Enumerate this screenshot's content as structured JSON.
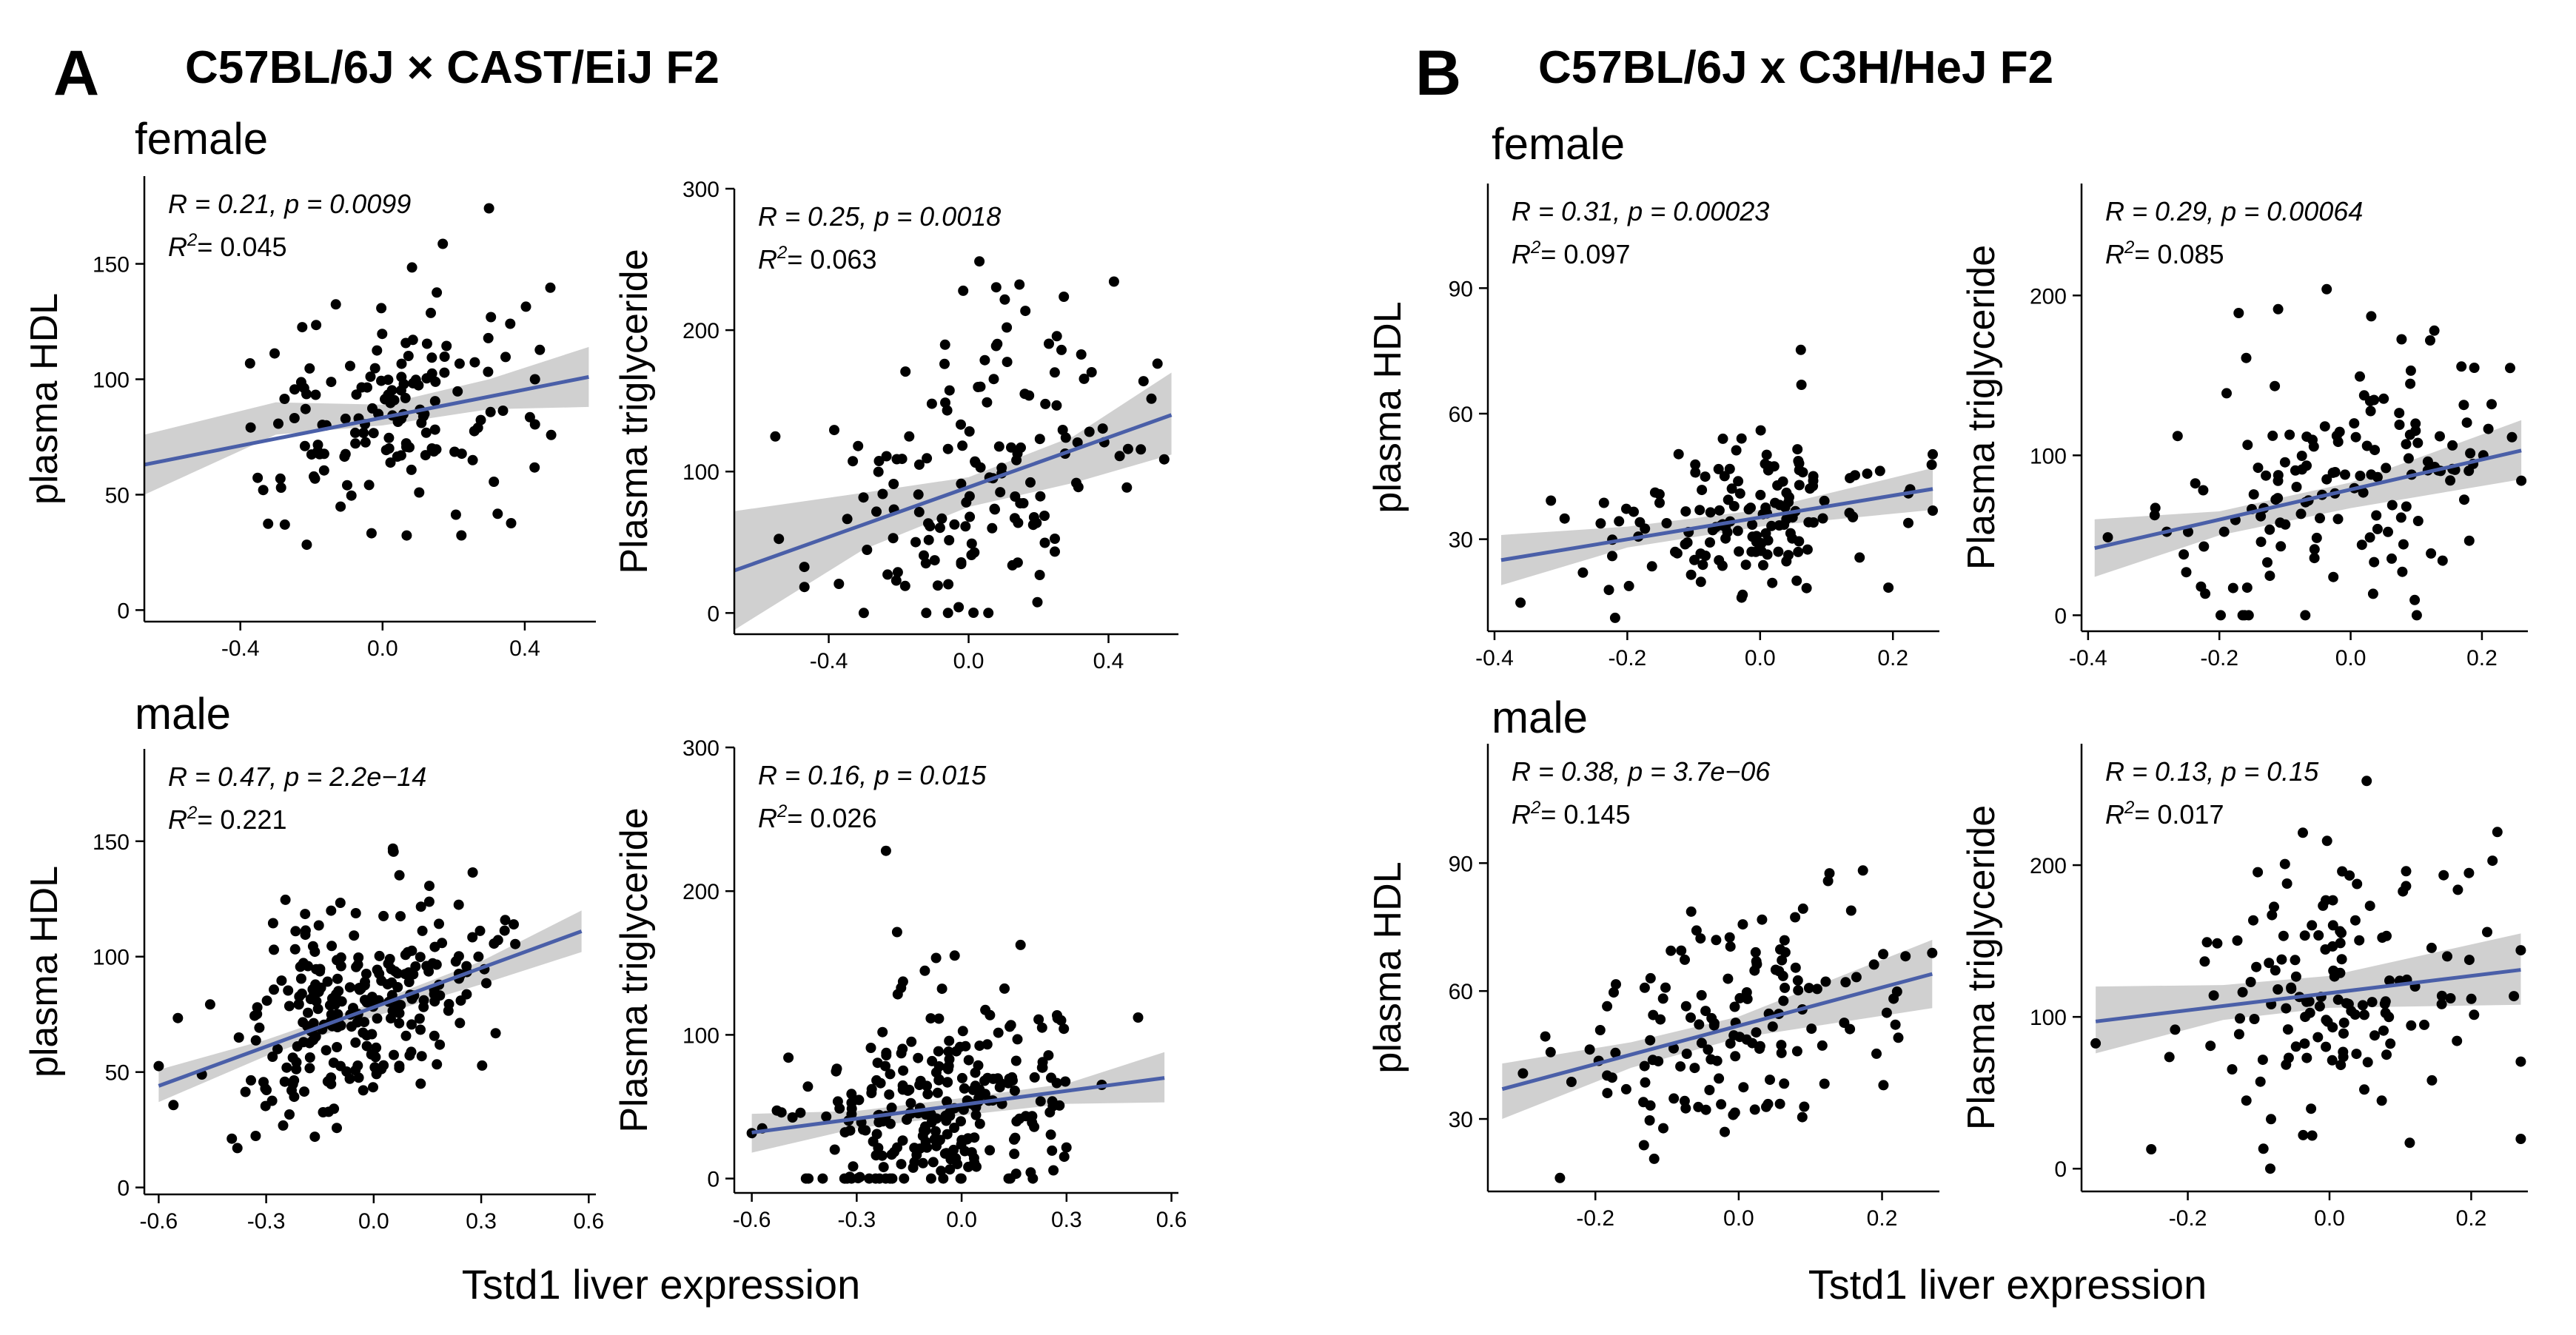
{
  "figure": {
    "panels": [
      {
        "letter": "A",
        "title": "C57BL/6J × CAST/EiJ F2",
        "x_axis_label": "Tstd1 liver expression"
      },
      {
        "letter": "B",
        "title": "C57BL/6J x C3H/HeJ F2",
        "x_axis_label": "Tstd1 liver expression"
      }
    ],
    "sex_labels": [
      "female",
      "male",
      "female",
      "male"
    ]
  },
  "colors": {
    "fit_line": "#4a5fa8",
    "confidence_band": "#c8c8c8",
    "points": "#000000"
  },
  "chart_data": [
    {
      "id": "A_female_HDL",
      "type": "scatter",
      "xlabel": "",
      "ylabel": "plasma HDL",
      "xlim": [
        -0.67,
        0.6
      ],
      "ylim": [
        -5,
        188
      ],
      "xticks": [
        -0.4,
        0.0,
        0.4
      ],
      "xtick_labels": [
        "-0.4",
        "0.0",
        "0.4"
      ],
      "yticks": [
        0,
        50,
        100,
        150
      ],
      "ytick_labels": [
        "0",
        "50",
        "100",
        "150"
      ],
      "stat_r": "R = 0.21, p = 0.0099",
      "stat_r2": "= 0.045",
      "fit": {
        "x": [
          -0.67,
          0.58
        ],
        "y": [
          63,
          101
        ]
      },
      "band": {
        "x": [
          -0.67,
          -0.3,
          0.0,
          0.3,
          0.58
        ],
        "upper": [
          76,
          90,
          89,
          100,
          114
        ],
        "lower": [
          50,
          76,
          80,
          87,
          88
        ]
      },
      "n": 150,
      "seed": 11,
      "mean_x": 0.04,
      "sd_x": 0.2,
      "mean_y": 85,
      "sd_y": 27
    },
    {
      "id": "A_female_TG",
      "type": "scatter",
      "xlabel": "",
      "ylabel": "Plasma triglyceride",
      "xlim": [
        -0.67,
        0.6
      ],
      "ylim": [
        -15,
        300
      ],
      "xticks": [
        -0.4,
        0.0,
        0.4
      ],
      "xtick_labels": [
        "-0.4",
        "0.0",
        "0.4"
      ],
      "yticks": [
        0,
        100,
        200,
        300
      ],
      "ytick_labels": [
        "0",
        "100",
        "200",
        "300"
      ],
      "stat_r": "R = 0.25, p = 0.0018",
      "stat_r2": "= 0.063",
      "fit": {
        "x": [
          -0.67,
          0.58
        ],
        "y": [
          30,
          140
        ]
      },
      "band": {
        "x": [
          -0.67,
          -0.3,
          0.0,
          0.3,
          0.58
        ],
        "upper": [
          72,
          85,
          96,
          125,
          170
        ],
        "lower": [
          -12,
          45,
          75,
          92,
          112
        ]
      },
      "n": 150,
      "seed": 23,
      "mean_x": 0.04,
      "sd_x": 0.2,
      "mean_y": 95,
      "sd_y": 60
    },
    {
      "id": "A_male_HDL",
      "type": "scatter",
      "xlabel": "",
      "ylabel": "plasma HDL",
      "xlim": [
        -0.64,
        0.62
      ],
      "ylim": [
        -3,
        190
      ],
      "xticks": [
        -0.6,
        -0.3,
        0.0,
        0.3,
        0.6
      ],
      "xtick_labels": [
        "-0.6",
        "-0.3",
        "0.0",
        "0.3",
        "0.6"
      ],
      "yticks": [
        0,
        50,
        100,
        150
      ],
      "ytick_labels": [
        "0",
        "50",
        "100",
        "150"
      ],
      "stat_r": "R = 0.47, p = 2.2e−14",
      "stat_r2": "= 0.221",
      "fit": {
        "x": [
          -0.6,
          0.58
        ],
        "y": [
          44,
          111
        ]
      },
      "band": {
        "x": [
          -0.6,
          -0.3,
          0.0,
          0.3,
          0.58
        ],
        "upper": [
          51,
          64,
          80,
          98,
          120
        ],
        "lower": [
          37,
          57,
          74,
          88,
          102
        ]
      },
      "n": 260,
      "seed": 37,
      "mean_x": -0.06,
      "sd_x": 0.2,
      "mean_y": 72,
      "sd_y": 25
    },
    {
      "id": "A_male_TG",
      "type": "scatter",
      "xlabel": "",
      "ylabel": "Plasma triglyceride",
      "xlim": [
        -0.65,
        0.62
      ],
      "ylim": [
        -10,
        300
      ],
      "xticks": [
        -0.6,
        -0.3,
        0.0,
        0.3,
        0.6
      ],
      "xtick_labels": [
        "-0.6",
        "-0.3",
        "0.0",
        "0.3",
        "0.6"
      ],
      "yticks": [
        0,
        100,
        200,
        300
      ],
      "ytick_labels": [
        "0",
        "100",
        "200",
        "300"
      ],
      "stat_r": "R = 0.16, p = 0.015",
      "stat_r2": "= 0.026",
      "fit": {
        "x": [
          -0.6,
          0.58
        ],
        "y": [
          32,
          70
        ]
      },
      "band": {
        "x": [
          -0.6,
          -0.3,
          0.0,
          0.3,
          0.58
        ],
        "upper": [
          45,
          47,
          56,
          66,
          88
        ],
        "lower": [
          18,
          35,
          44,
          52,
          53
        ]
      },
      "n": 260,
      "seed": 41,
      "mean_x": -0.06,
      "sd_x": 0.2,
      "mean_y": 50,
      "sd_y": 40
    },
    {
      "id": "B_female_HDL",
      "type": "scatter",
      "xlabel": "",
      "ylabel": "plasma HDL",
      "xlim": [
        -0.41,
        0.27
      ],
      "ylim": [
        8,
        115
      ],
      "xticks": [
        -0.4,
        -0.2,
        0.0,
        0.2
      ],
      "xtick_labels": [
        "-0.4",
        "-0.2",
        "0.0",
        "0.2"
      ],
      "yticks": [
        30,
        60,
        90
      ],
      "ytick_labels": [
        "30",
        "60",
        "90"
      ],
      "stat_r": "R = 0.31, p = 0.00023",
      "stat_r2": "= 0.097",
      "fit": {
        "x": [
          -0.39,
          0.26
        ],
        "y": [
          25,
          42
        ]
      },
      "band": {
        "x": [
          -0.39,
          -0.2,
          0.0,
          0.26
        ],
        "upper": [
          31,
          33,
          37,
          47
        ],
        "lower": [
          19,
          28,
          33,
          37
        ]
      },
      "n": 150,
      "seed": 53,
      "mean_x": -0.02,
      "sd_x": 0.12,
      "mean_y": 34,
      "sd_y": 11
    },
    {
      "id": "B_female_TG",
      "type": "scatter",
      "xlabel": "",
      "ylabel": "Plasma triglyceride",
      "xlim": [
        -0.41,
        0.27
      ],
      "ylim": [
        -10,
        270
      ],
      "xticks": [
        -0.4,
        -0.2,
        0.0,
        0.2
      ],
      "xtick_labels": [
        "-0.4",
        "-0.2",
        "0.0",
        "0.2"
      ],
      "yticks": [
        0,
        100,
        200
      ],
      "ytick_labels": [
        "0",
        "100",
        "200"
      ],
      "stat_r": "R = 0.29, p = 0.00064",
      "stat_r2": "= 0.085",
      "fit": {
        "x": [
          -0.39,
          0.26
        ],
        "y": [
          42,
          103
        ]
      },
      "band": {
        "x": [
          -0.39,
          -0.2,
          0.0,
          0.26
        ],
        "upper": [
          60,
          65,
          83,
          122
        ],
        "lower": [
          24,
          50,
          67,
          85
        ]
      },
      "n": 150,
      "seed": 67,
      "mean_x": -0.02,
      "sd_x": 0.12,
      "mean_y": 75,
      "sd_y": 45
    },
    {
      "id": "B_male_HDL",
      "type": "scatter",
      "xlabel": "",
      "ylabel": "plasma HDL",
      "xlim": [
        -0.35,
        0.28
      ],
      "ylim": [
        13,
        118
      ],
      "xticks": [
        -0.2,
        0.0,
        0.2
      ],
      "xtick_labels": [
        "-0.2",
        "0.0",
        "0.2"
      ],
      "yticks": [
        30,
        60,
        90
      ],
      "ytick_labels": [
        "30",
        "60",
        "90"
      ],
      "stat_r": "R = 0.38, p = 3.7e−06",
      "stat_r2": "= 0.145",
      "fit": {
        "x": [
          -0.33,
          0.27
        ],
        "y": [
          37,
          64
        ]
      },
      "band": {
        "x": [
          -0.33,
          -0.15,
          0.0,
          0.27
        ],
        "upper": [
          43,
          48,
          54,
          72
        ],
        "lower": [
          30,
          42,
          49,
          56
        ]
      },
      "n": 145,
      "seed": 79,
      "mean_x": -0.01,
      "sd_x": 0.12,
      "mean_y": 50,
      "sd_y": 15
    },
    {
      "id": "B_male_TG",
      "type": "scatter",
      "xlabel": "",
      "ylabel": "Plasma triglyceride",
      "xlim": [
        -0.35,
        0.28
      ],
      "ylim": [
        -15,
        280
      ],
      "xticks": [
        -0.2,
        0.0,
        0.2
      ],
      "xtick_labels": [
        "-0.2",
        "0.0",
        "0.2"
      ],
      "yticks": [
        0,
        100,
        200
      ],
      "ytick_labels": [
        "0",
        "100",
        "200"
      ],
      "stat_r": "R = 0.13, p = 0.15",
      "stat_r2": "= 0.017",
      "fit": {
        "x": [
          -0.33,
          0.27
        ],
        "y": [
          97,
          131
        ]
      },
      "band": {
        "x": [
          -0.33,
          -0.15,
          0.0,
          0.27
        ],
        "upper": [
          120,
          121,
          127,
          155
        ],
        "lower": [
          76,
          98,
          106,
          108
        ]
      },
      "n": 145,
      "seed": 97,
      "mean_x": -0.01,
      "sd_x": 0.12,
      "mean_y": 115,
      "sd_y": 55
    }
  ]
}
